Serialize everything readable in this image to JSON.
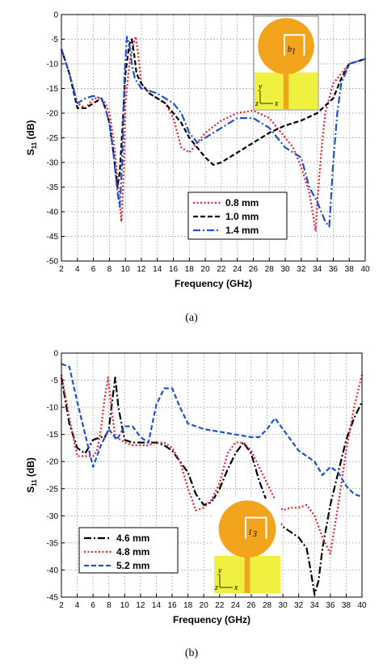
{
  "chart_data": [
    {
      "type": "line",
      "panel": "(a)",
      "xlabel": "Frequency (GHz)",
      "ylabel": "S11 (dB)",
      "xlim": [
        2,
        40
      ],
      "ylim": [
        -50,
        0
      ],
      "xticks": [
        2,
        4,
        6,
        8,
        10,
        12,
        14,
        16,
        18,
        20,
        22,
        24,
        26,
        28,
        30,
        32,
        34,
        36,
        38,
        40
      ],
      "yticks": [
        0,
        -5,
        -10,
        -15,
        -20,
        -25,
        -30,
        -35,
        -40,
        -45,
        -50
      ],
      "grid": true,
      "legend_position": "bottom-right",
      "inset_labels": [
        "b",
        "1",
        "y",
        "z",
        "x"
      ],
      "series": [
        {
          "name": "0.8 mm",
          "color": "#e8202a",
          "dash": "dotted",
          "x": [
            2,
            3,
            4,
            5,
            6,
            7,
            7.5,
            8,
            8.5,
            9,
            9.5,
            9.8,
            10,
            10.5,
            11,
            11.3,
            11.6,
            12,
            13,
            14,
            15,
            16,
            17,
            18,
            19,
            20,
            22,
            24,
            26,
            28,
            30,
            31,
            32,
            33,
            33.5,
            33.8,
            34,
            34.5,
            35,
            36,
            37,
            38,
            39,
            40
          ],
          "y": [
            -7,
            -12,
            -18,
            -19,
            -17,
            -17,
            -18,
            -20,
            -25,
            -33,
            -42,
            -32,
            -18,
            -10,
            -6,
            -4.5,
            -8,
            -14,
            -16,
            -17,
            -18,
            -21,
            -27,
            -28,
            -26,
            -24,
            -21.5,
            -20,
            -19.5,
            -21,
            -25,
            -27,
            -31,
            -36,
            -41,
            -44,
            -38,
            -28,
            -20,
            -14,
            -12,
            -10,
            -9.5,
            -9
          ]
        },
        {
          "name": "1.0 mm",
          "color": "#000000",
          "dash": "dashed",
          "x": [
            2,
            3,
            4,
            5,
            6,
            7,
            7.5,
            8,
            8.5,
            9,
            9.3,
            9.6,
            10,
            10.5,
            10.8,
            11.1,
            11.4,
            12,
            13,
            14,
            15,
            16,
            17,
            18,
            19,
            20,
            21,
            22,
            24,
            26,
            28,
            30,
            32,
            34,
            36,
            37,
            38,
            39,
            40
          ],
          "y": [
            -7,
            -12,
            -19,
            -19,
            -18,
            -17,
            -19,
            -22,
            -28,
            -35,
            -32,
            -24,
            -12,
            -6,
            -5,
            -8,
            -12,
            -14,
            -16,
            -17,
            -18,
            -20,
            -22,
            -25,
            -27,
            -29,
            -30.5,
            -30,
            -28,
            -26,
            -24,
            -22.5,
            -21.5,
            -20,
            -17,
            -13,
            -10,
            -9.5,
            -9
          ]
        },
        {
          "name": "1.4 mm",
          "color": "#1e50d8",
          "dash": "dashdot",
          "x": [
            2,
            3,
            4,
            5,
            6,
            7,
            7.5,
            8,
            8.5,
            9,
            9.3,
            9.6,
            9.9,
            10.2,
            10.5,
            10.8,
            11.2,
            12,
            13,
            14,
            15,
            16,
            17,
            18,
            19,
            20,
            22,
            24,
            26,
            28,
            30,
            31,
            32,
            33,
            34,
            35,
            35.5,
            36,
            36.5,
            37,
            38,
            39,
            40
          ],
          "y": [
            -7,
            -12,
            -18,
            -17,
            -16.5,
            -17,
            -19,
            -22,
            -28,
            -36,
            -39,
            -30,
            -12,
            -4.5,
            -6,
            -10,
            -13,
            -15,
            -15.5,
            -16,
            -17,
            -18,
            -20,
            -24,
            -26,
            -25,
            -23,
            -21,
            -21,
            -23,
            -27,
            -28,
            -29,
            -35,
            -38,
            -42,
            -43,
            -30,
            -20,
            -14,
            -10,
            -9.5,
            -9
          ]
        }
      ]
    },
    {
      "type": "line",
      "panel": "(b)",
      "xlabel": "Frequency (GHz)",
      "ylabel": "S11 (dB)",
      "xlim": [
        2,
        40
      ],
      "ylim": [
        -45,
        0
      ],
      "xticks": [
        2,
        4,
        6,
        8,
        10,
        12,
        14,
        16,
        18,
        20,
        22,
        24,
        26,
        28,
        30,
        32,
        34,
        36,
        38,
        40
      ],
      "yticks": [
        0,
        -5,
        -10,
        -15,
        -20,
        -25,
        -30,
        -35,
        -40,
        -45
      ],
      "grid": true,
      "legend_position": "bottom-left",
      "inset_labels": [
        "l",
        "3",
        "y",
        "z",
        "x"
      ],
      "series": [
        {
          "name": "4.6 mm",
          "color": "#000000",
          "dash": "dashdot",
          "x": [
            2,
            3,
            4,
            5,
            6,
            7,
            7.5,
            8,
            8.5,
            8.8,
            9.2,
            10,
            11,
            12,
            13,
            14,
            15,
            16,
            17,
            18,
            19,
            20,
            21,
            22,
            23,
            24,
            25,
            26,
            27,
            28,
            29,
            30,
            31,
            32,
            33,
            33.5,
            34,
            34.5,
            35,
            36,
            37,
            38,
            39,
            40
          ],
          "y": [
            -4.5,
            -13,
            -17.5,
            -18.5,
            -16,
            -15.5,
            -15.5,
            -14,
            -8,
            -4.5,
            -10,
            -16,
            -16.5,
            -16.5,
            -16.5,
            -16.5,
            -17,
            -18,
            -20,
            -22,
            -26,
            -28,
            -27.5,
            -25,
            -21.5,
            -18.5,
            -16.5,
            -18.5,
            -23.5,
            -27.5,
            -30,
            -32,
            -33,
            -34,
            -36,
            -40,
            -44.5,
            -42,
            -36,
            -28,
            -22,
            -16,
            -12,
            -9
          ]
        },
        {
          "name": "4.8 mm",
          "color": "#e8202a",
          "dash": "dotted",
          "x": [
            2,
            3,
            4,
            5,
            6,
            6.5,
            7,
            7.5,
            7.9,
            8.3,
            8.8,
            9.5,
            10,
            11,
            12,
            13,
            14,
            15,
            16,
            17,
            18,
            19,
            20,
            21,
            22,
            23,
            24,
            25,
            26,
            27,
            28,
            29,
            30,
            31,
            32,
            33,
            34,
            35,
            36,
            37,
            38,
            39,
            40
          ],
          "y": [
            -4,
            -12,
            -19,
            -19,
            -19,
            -18,
            -14,
            -8,
            -4.5,
            -10,
            -15.5,
            -16,
            -16.5,
            -17,
            -17,
            -17,
            -16.5,
            -16.5,
            -17.5,
            -20,
            -25,
            -29,
            -28.5,
            -27,
            -24,
            -18.5,
            -16.5,
            -16.5,
            -18,
            -21,
            -24,
            -27,
            -29,
            -28.5,
            -28.5,
            -28,
            -30,
            -34,
            -37,
            -28,
            -18,
            -10,
            -4
          ]
        },
        {
          "name": "5.2 mm",
          "color": "#1e50d8",
          "dash": "dashed",
          "x": [
            2,
            3,
            4,
            5,
            6,
            7,
            8,
            9,
            10,
            11,
            12,
            13,
            14,
            15,
            16,
            17,
            18,
            20,
            22,
            24,
            26,
            27,
            28,
            29,
            30,
            32,
            34,
            35,
            36,
            37,
            38,
            39,
            40
          ],
          "y": [
            -2,
            -2.5,
            -9,
            -15,
            -21,
            -17,
            -14,
            -16,
            -13.5,
            -13.5,
            -15.5,
            -16.5,
            -9.5,
            -6.5,
            -6.5,
            -10,
            -13,
            -14,
            -14.5,
            -15,
            -15.5,
            -15.5,
            -14,
            -12,
            -14,
            -18,
            -20,
            -22.5,
            -21,
            -22,
            -24.5,
            -26,
            -26.5
          ]
        }
      ]
    }
  ],
  "captions": [
    "(a)",
    "(b)"
  ],
  "colors": {
    "grid": "#a0a0a0",
    "patch": "#f2a51c",
    "substrate": "#f0f040",
    "feed": "#f2a51c"
  }
}
